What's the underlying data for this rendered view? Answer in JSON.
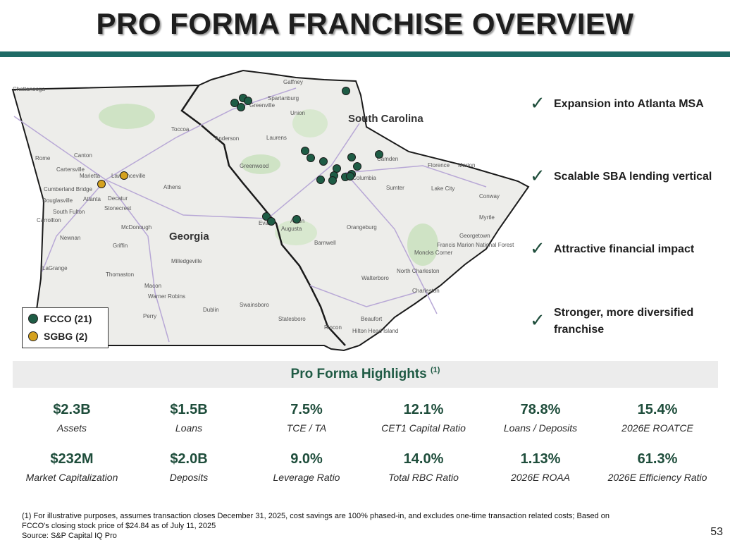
{
  "title": "PRO FORMA FRANCHISE OVERVIEW",
  "map": {
    "state_labels": [
      "South Carolina",
      "Georgia"
    ],
    "city_labels": [
      "Chattanooga",
      "Gaffney",
      "Spartanburg",
      "Greenville",
      "Union",
      "Toccoa",
      "Anderson",
      "Laurens",
      "Rome",
      "Canton",
      "Cartersville",
      "Marietta",
      "Lawrenceville",
      "Cumberland Bridge",
      "Douglasville",
      "Atlanta",
      "Decatur",
      "Stonecrest",
      "South Fulton",
      "Carrollton",
      "Athens",
      "McDonough",
      "Newnan",
      "Griffin",
      "Greenwood",
      "Columbia",
      "Camden",
      "Florence",
      "Marion",
      "Sumter",
      "Lake City",
      "Conway",
      "Myrtle",
      "Orangeburg",
      "Georgetown",
      "Moncks Corner",
      "Francis Marion National Forest",
      "North Charleston",
      "Charleston",
      "Walterboro",
      "Barnwell",
      "Augusta",
      "Evans",
      "Aiken",
      "Milledgeville",
      "Thomaston",
      "LaGrange",
      "Macon",
      "Warner Robins",
      "Perry",
      "Dublin",
      "Swainsboro",
      "Statesboro",
      "Rincon",
      "Beaufort",
      "Hilton Head Island"
    ]
  },
  "legend": [
    {
      "label": "FCCO (21)",
      "color": "#1e5c45"
    },
    {
      "label": "SGBG (2)",
      "color": "#d4a11e"
    }
  ],
  "bullets": [
    "Expansion into Atlanta MSA",
    "Scalable SBA lending vertical",
    "Attractive financial impact",
    "Stronger, more diversified franchise"
  ],
  "highlights": {
    "heading": "Pro Forma Highlights",
    "note": "(1)",
    "metrics": [
      {
        "value": "$2.3B",
        "label": "Assets"
      },
      {
        "value": "$1.5B",
        "label": "Loans"
      },
      {
        "value": "7.5%",
        "label": "TCE / TA"
      },
      {
        "value": "12.1%",
        "label": "CET1 Capital Ratio"
      },
      {
        "value": "78.8%",
        "label": "Loans / Deposits"
      },
      {
        "value": "15.4%",
        "label": "2026E ROATCE"
      },
      {
        "value": "$232M",
        "label": "Market Capitalization"
      },
      {
        "value": "$2.0B",
        "label": "Deposits"
      },
      {
        "value": "9.0%",
        "label": "Leverage Ratio"
      },
      {
        "value": "14.0%",
        "label": "Total RBC Ratio"
      },
      {
        "value": "1.13%",
        "label": "2026E ROAA"
      },
      {
        "value": "61.3%",
        "label": "2026E Efficiency Ratio"
      }
    ]
  },
  "footnote": {
    "line1": "(1) For illustrative purposes, assumes transaction closes December 31, 2025, cost savings are 100% phased-in, and excludes one-time transaction related costs; Based on",
    "line2": "FCCO's closing stock price of $24.84 as of July 11, 2025",
    "source": "Source: S&P Capital IQ Pro"
  },
  "page_number": "53"
}
